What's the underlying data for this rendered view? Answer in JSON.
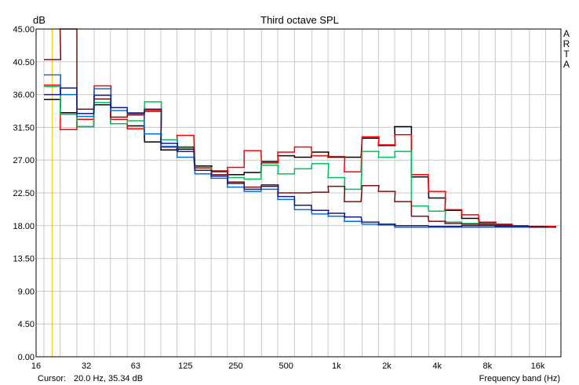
{
  "chart_data": {
    "type": "line",
    "title": "Third octave SPL",
    "ylabel": "dB",
    "xlabel": "Frequency band (Hz)",
    "brand": [
      "A",
      "R",
      "T",
      "A"
    ],
    "cursor": {
      "label": "Cursor:",
      "value": "20.0 Hz, 35.34 dB",
      "frequency": 20
    },
    "ylim": [
      0,
      45
    ],
    "yticks": [
      "45.00",
      "40.50",
      "36.00",
      "31.50",
      "27.00",
      "22.50",
      "18.00",
      "13.50",
      "9.00",
      "4.50",
      "0.00"
    ],
    "xlim": [
      16,
      22000
    ],
    "xscale": "log",
    "xticks": [
      {
        "label": "16",
        "value": 16
      },
      {
        "label": "32",
        "value": 32
      },
      {
        "label": "63",
        "value": 63
      },
      {
        "label": "125",
        "value": 125
      },
      {
        "label": "250",
        "value": 250
      },
      {
        "label": "500",
        "value": 500
      },
      {
        "label": "1k",
        "value": 1000
      },
      {
        "label": "2k",
        "value": 2000
      },
      {
        "label": "4k",
        "value": 4000
      },
      {
        "label": "8k",
        "value": 8000
      },
      {
        "label": "16k",
        "value": 16000
      }
    ],
    "grid": true,
    "colors": {
      "cursor": "#e8c000",
      "grid": "#c8c8c8",
      "frame": "#000000"
    },
    "bands": [
      20,
      25,
      31.5,
      40,
      50,
      63,
      80,
      100,
      125,
      160,
      200,
      250,
      315,
      400,
      500,
      630,
      800,
      1000,
      1250,
      1600,
      2000,
      2500,
      3150,
      4000,
      5000,
      6300,
      8000,
      10000,
      12500,
      16000,
      20000
    ],
    "series": [
      {
        "color": "#000000",
        "values": [
          35.34,
          33.5,
          31.6,
          34.6,
          32.0,
          31.7,
          29.5,
          28.4,
          28.5,
          26.2,
          25.5,
          25.0,
          25.3,
          26.8,
          27.6,
          27.4,
          28.1,
          27.4,
          27.4,
          30.0,
          29.0,
          31.6,
          24.7,
          21.8,
          20.1,
          19.0,
          18.3,
          18.1,
          17.9,
          17.9,
          17.8
        ]
      },
      {
        "color": "#ff0000",
        "values": [
          37.3,
          31.2,
          32.6,
          37.2,
          32.6,
          31.3,
          33.9,
          28.8,
          30.4,
          25.9,
          25.4,
          26.0,
          28.3,
          26.6,
          28.1,
          28.8,
          27.6,
          27.5,
          25.4,
          30.2,
          29.1,
          30.5,
          25.0,
          22.7,
          20.2,
          19.5,
          18.5,
          18.2,
          18.0,
          17.9,
          17.9
        ]
      },
      {
        "color": "#00c060",
        "values": [
          37.1,
          33.3,
          31.6,
          34.9,
          32.0,
          32.4,
          35.0,
          29.8,
          28.6,
          26.0,
          25.0,
          24.6,
          24.4,
          26.3,
          25.1,
          25.8,
          26.5,
          24.6,
          23.0,
          28.2,
          27.4,
          28.2,
          20.7,
          20.0,
          18.5,
          18.3,
          18.2,
          18.0,
          17.9,
          17.8,
          17.8
        ]
      },
      {
        "color": "#7a1010",
        "values": [
          40.8,
          45.0,
          34.0,
          35.4,
          32.9,
          33.2,
          33.7,
          28.8,
          28.8,
          25.6,
          25.0,
          24.0,
          23.3,
          23.6,
          22.5,
          22.5,
          22.6,
          23.4,
          21.3,
          23.5,
          22.7,
          21.3,
          19.3,
          18.6,
          18.3,
          18.2,
          18.1,
          18.0,
          17.9,
          17.9,
          17.8
        ]
      },
      {
        "color": "#0070e0",
        "values": [
          38.7,
          36.0,
          33.0,
          36.8,
          33.8,
          33.5,
          30.6,
          28.9,
          27.4,
          25.1,
          24.5,
          23.3,
          22.7,
          23.0,
          21.6,
          20.2,
          19.6,
          19.3,
          18.6,
          18.2,
          18.1,
          17.8,
          17.8,
          17.8,
          17.8,
          17.8,
          17.8,
          17.8,
          17.8,
          17.8,
          17.8
        ]
      },
      {
        "color": "#1a1a80",
        "values": [
          36.0,
          36.9,
          33.4,
          35.9,
          34.2,
          33.4,
          34.0,
          29.3,
          28.2,
          25.6,
          24.8,
          23.8,
          23.0,
          23.4,
          22.0,
          20.8,
          20.1,
          19.7,
          19.2,
          18.5,
          18.2,
          18.0,
          18.0,
          17.9,
          17.9,
          18.0,
          18.0,
          17.9,
          17.9,
          17.8,
          17.8
        ]
      }
    ]
  }
}
